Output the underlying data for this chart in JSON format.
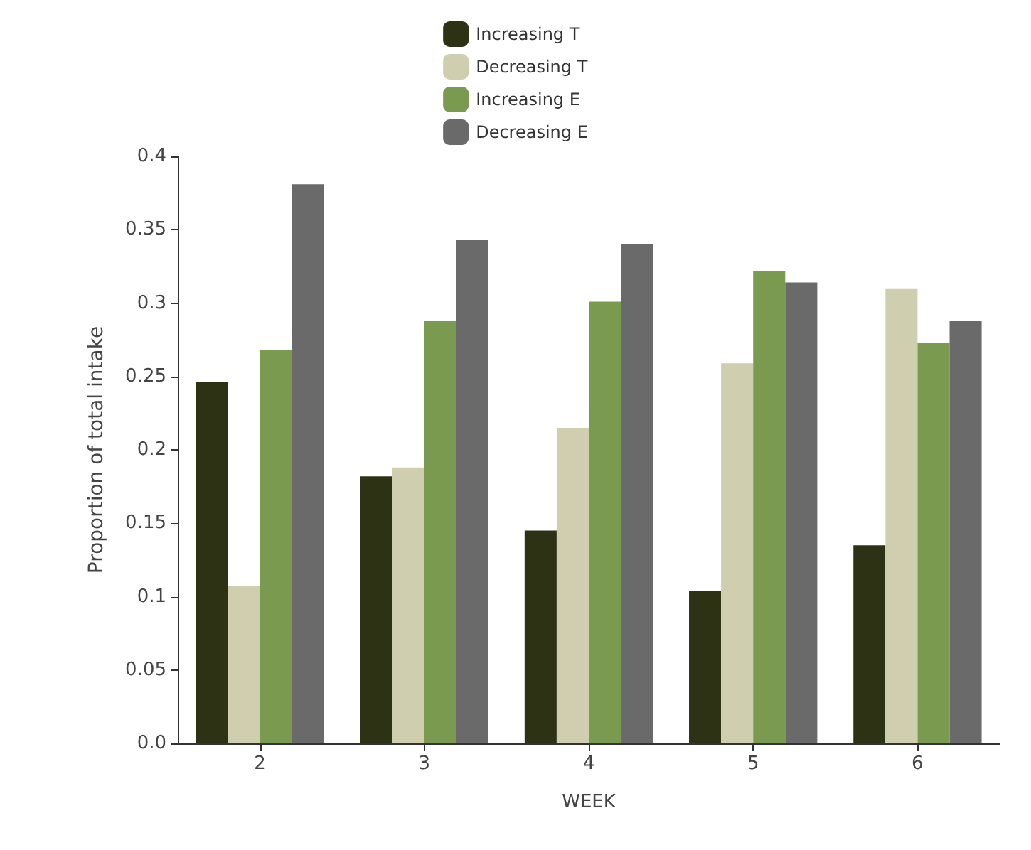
{
  "chart_data": {
    "type": "bar",
    "xlabel": "WEEK",
    "ylabel": "Proportion of total intake",
    "categories": [
      "2",
      "3",
      "4",
      "5",
      "6"
    ],
    "series": [
      {
        "name": "Increasing T",
        "color": "#2d3214",
        "values": [
          0.246,
          0.182,
          0.145,
          0.104,
          0.135
        ]
      },
      {
        "name": "Decreasing T",
        "color": "#cfcfb0",
        "values": [
          0.107,
          0.188,
          0.215,
          0.259,
          0.31
        ]
      },
      {
        "name": "Increasing E",
        "color": "#7a9a50",
        "values": [
          0.268,
          0.288,
          0.301,
          0.322,
          0.273
        ]
      },
      {
        "name": "Decreasing E",
        "color": "#6a6a6a",
        "values": [
          0.381,
          0.343,
          0.34,
          0.314,
          0.288
        ]
      }
    ],
    "ylim": [
      0,
      0.4
    ],
    "yticks": [
      {
        "value": 0,
        "label": "0.0"
      },
      0.05,
      0.1,
      0.15,
      0.2,
      0.25,
      0.3,
      0.35,
      0.4
    ],
    "grid": false,
    "legend": "top"
  }
}
